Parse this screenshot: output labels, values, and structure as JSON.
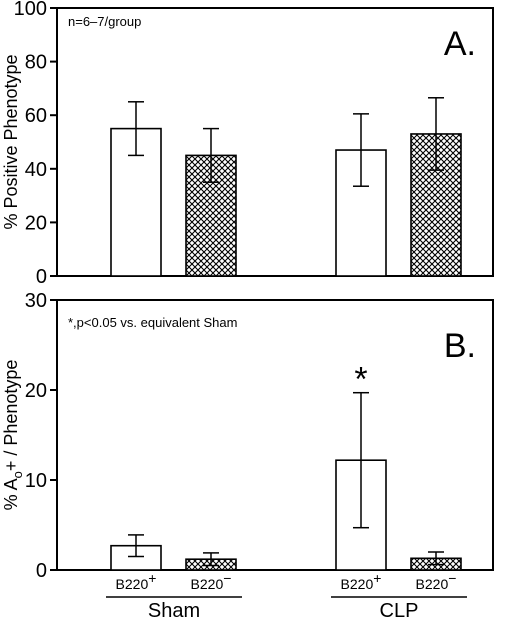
{
  "colors": {
    "axis": "#000000",
    "bar_fill_open": "#ffffff",
    "bar_pattern": "crosshatch"
  },
  "chart_data": [
    {
      "type": "bar",
      "panel": "A.",
      "ylabel": "% Positive Phenotype",
      "ylim": [
        0,
        100
      ],
      "yticks": [
        0,
        20,
        40,
        60,
        80,
        100
      ],
      "annotation": "n=6–7/group",
      "groups": [
        "Sham",
        "CLP"
      ],
      "categories": [
        "B220+",
        "B220−",
        "B220+",
        "B220−"
      ],
      "values": [
        55,
        45,
        47,
        53
      ],
      "errors": [
        10,
        10,
        13.5,
        13.5
      ],
      "patterns": [
        "open",
        "crosshatch",
        "open",
        "crosshatch"
      ],
      "significant": [
        false,
        false,
        false,
        false
      ]
    },
    {
      "type": "bar",
      "panel": "B.",
      "ylabel_parts": [
        "% A",
        "o",
        "+ / Phenotype"
      ],
      "ylim": [
        0,
        30
      ],
      "yticks": [
        0,
        10,
        20,
        30
      ],
      "annotation": "*,p<0.05 vs. equivalent Sham",
      "groups": [
        "Sham",
        "CLP"
      ],
      "categories": [
        "B220+",
        "B220−",
        "B220+",
        "B220−"
      ],
      "values": [
        2.7,
        1.2,
        12.2,
        1.3
      ],
      "errors": [
        1.2,
        0.7,
        7.5,
        0.7
      ],
      "patterns": [
        "open",
        "crosshatch",
        "open",
        "crosshatch"
      ],
      "significant": [
        false,
        false,
        true,
        false
      ],
      "sig_symbol": "*"
    }
  ],
  "x_axis": {
    "category_labels": [
      {
        "base": "B220",
        "sup": "+"
      },
      {
        "base": "B220",
        "sup": "−"
      },
      {
        "base": "B220",
        "sup": "+"
      },
      {
        "base": "B220",
        "sup": "−"
      }
    ],
    "group_labels": [
      "Sham",
      "CLP"
    ]
  }
}
